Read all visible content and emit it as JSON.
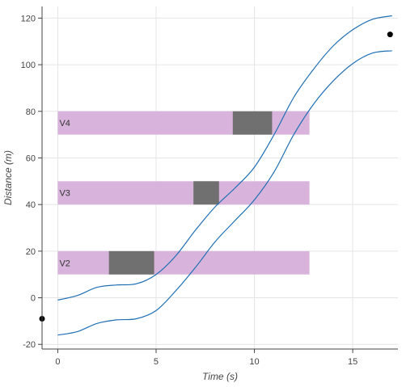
{
  "chart_data": {
    "type": "line",
    "xlabel": "Time (s)",
    "ylabel": "Distance (m)",
    "xlim": [
      -0.8,
      17.3
    ],
    "ylim": [
      -22,
      125
    ],
    "xticks": [
      0,
      5,
      10,
      15
    ],
    "yticks": [
      -20,
      0,
      20,
      40,
      60,
      80,
      100,
      120
    ],
    "grid": true,
    "colors": {
      "band": "#d8b4dc",
      "block": "#707070",
      "line": "#1f6fb4",
      "point": "#000000"
    },
    "bands": [
      {
        "label": "V2",
        "x0": 0,
        "x1": 12.8,
        "y0": 10,
        "y1": 20
      },
      {
        "label": "V3",
        "x0": 0,
        "x1": 12.8,
        "y0": 40,
        "y1": 50
      },
      {
        "label": "V4",
        "x0": 0,
        "x1": 12.8,
        "y0": 70,
        "y1": 80
      }
    ],
    "blocks": [
      {
        "x0": 2.6,
        "x1": 4.9,
        "y0": 10,
        "y1": 20
      },
      {
        "x0": 6.9,
        "x1": 8.2,
        "y0": 40,
        "y1": 50
      },
      {
        "x0": 8.9,
        "x1": 10.9,
        "y0": 70,
        "y1": 80
      }
    ],
    "series": [
      {
        "x": [
          0,
          1,
          2,
          3,
          4,
          5,
          6,
          7,
          8,
          9,
          10,
          11,
          12,
          13,
          14,
          15,
          16,
          17
        ],
        "y": [
          -1,
          1,
          4.5,
          5.5,
          6,
          10,
          18,
          29,
          39,
          47,
          56,
          70,
          86,
          98,
          108,
          115,
          119.5,
          121
        ]
      },
      {
        "x": [
          0,
          1,
          2,
          3,
          4,
          5,
          6,
          7,
          8,
          9,
          10,
          11,
          12,
          13,
          14,
          15,
          16,
          17
        ],
        "y": [
          -16,
          -14.5,
          -11,
          -9.5,
          -9,
          -5.5,
          3,
          13,
          24,
          33,
          42,
          54,
          70,
          83,
          93,
          100.5,
          105,
          106
        ]
      }
    ],
    "points": [
      {
        "x": -0.8,
        "y": -9
      },
      {
        "x": 16.9,
        "y": 113
      }
    ]
  }
}
